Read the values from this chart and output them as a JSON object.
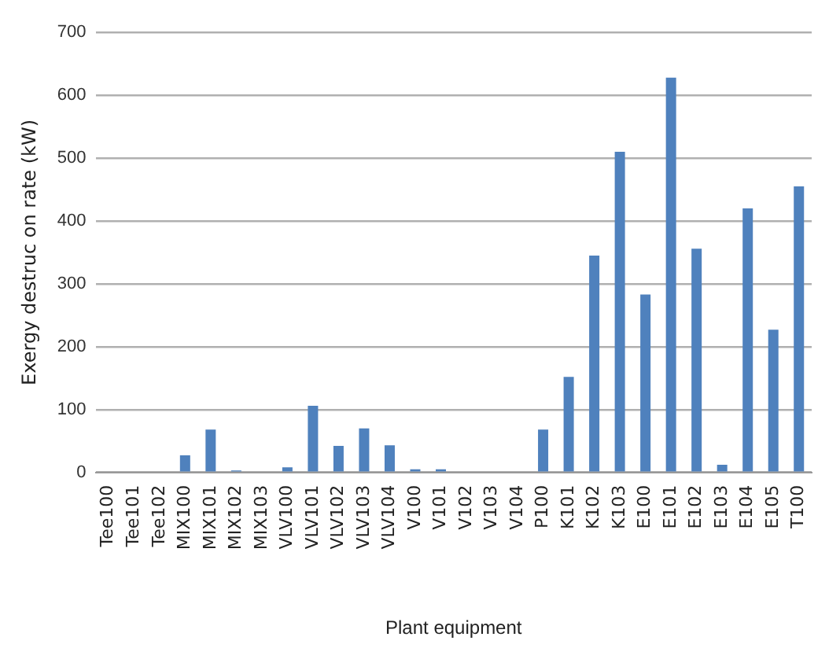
{
  "chart_data": {
    "type": "bar",
    "xlabel": "Plant equipment",
    "ylabel": "Exergy destruc on rate (kW)",
    "categories": [
      "Tee100",
      "Tee101",
      "Tee102",
      "MIX100",
      "MIX101",
      "MIX102",
      "MIX103",
      "VLV100",
      "VLV101",
      "VLV102",
      "VLV103",
      "VLV104",
      "V100",
      "V101",
      "V102",
      "V103",
      "V104",
      "P100",
      "K101",
      "K102",
      "K103",
      "E100",
      "E101",
      "E102",
      "E103",
      "E104",
      "E105",
      "T100"
    ],
    "values": [
      0,
      0,
      0,
      27,
      68,
      3,
      0,
      8,
      106,
      42,
      70,
      43,
      5,
      5,
      0,
      0,
      0,
      68,
      152,
      345,
      510,
      283,
      628,
      356,
      12,
      420,
      227,
      455
    ],
    "color": "#4f81bd",
    "ylim": [
      0,
      700
    ],
    "yticks": [
      0,
      100,
      200,
      300,
      400,
      500,
      600,
      700
    ],
    "grid": "y",
    "legend": false
  }
}
